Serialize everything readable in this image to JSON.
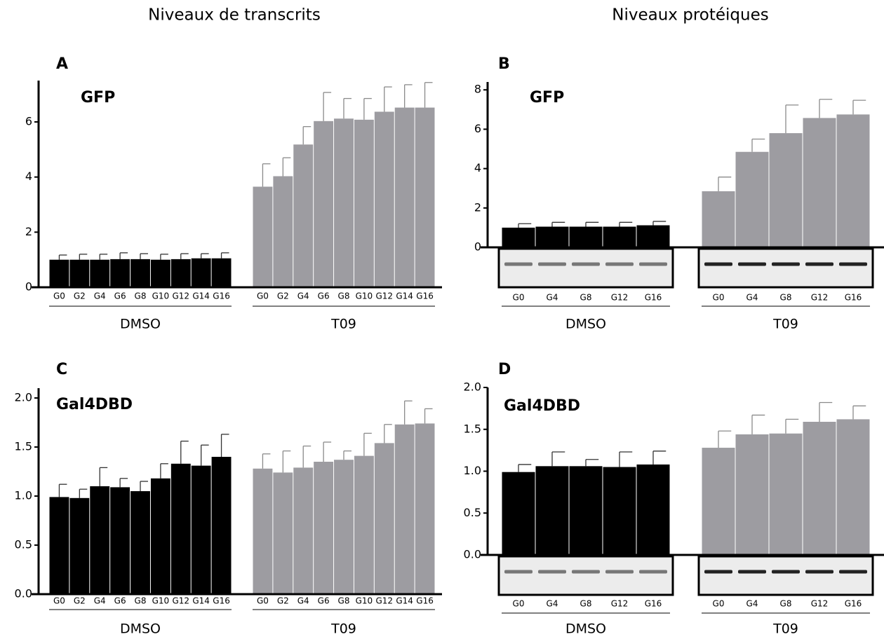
{
  "headings": [
    "Niveaux de transcrits",
    "Niveaux protéiques"
  ],
  "chart_data": [
    {
      "type": "bar",
      "panel": "A",
      "title": "GFP",
      "categories": [
        "G0",
        "G2",
        "G4",
        "G6",
        "G8",
        "G10",
        "G12",
        "G14",
        "G16"
      ],
      "ylim": [
        0,
        7.5
      ],
      "yticks": [
        0,
        2,
        4,
        6
      ],
      "series": [
        {
          "name": "DMSO",
          "color": "#000000",
          "values": [
            1.0,
            1.0,
            1.0,
            1.02,
            1.02,
            1.0,
            1.02,
            1.05,
            1.05
          ],
          "errors": [
            0.17,
            0.2,
            0.2,
            0.23,
            0.2,
            0.2,
            0.2,
            0.17,
            0.2
          ]
        },
        {
          "name": "T09",
          "color": "#9d9ca1",
          "values": [
            3.65,
            4.03,
            5.18,
            6.03,
            6.12,
            6.08,
            6.37,
            6.52,
            6.52
          ],
          "errors": [
            0.83,
            0.67,
            0.65,
            1.04,
            0.73,
            0.77,
            0.9,
            0.83,
            0.91
          ]
        }
      ]
    },
    {
      "type": "bar",
      "panel": "B",
      "title": "GFP",
      "categories": [
        "G0",
        "G4",
        "G8",
        "G12",
        "G16"
      ],
      "ylim": [
        0,
        8.4
      ],
      "yticks": [
        0,
        2,
        4,
        6,
        8
      ],
      "series": [
        {
          "name": "DMSO",
          "color": "#000000",
          "values": [
            1.0,
            1.05,
            1.05,
            1.05,
            1.12
          ],
          "errors": [
            0.2,
            0.22,
            0.22,
            0.22,
            0.2
          ]
        },
        {
          "name": "T09",
          "color": "#9d9ca1",
          "values": [
            2.85,
            4.85,
            5.8,
            6.57,
            6.75
          ],
          "errors": [
            0.72,
            0.65,
            1.43,
            0.95,
            0.72
          ]
        }
      ]
    },
    {
      "type": "bar",
      "panel": "C",
      "title": "Gal4DBD",
      "categories": [
        "G0",
        "G2",
        "G4",
        "G6",
        "G8",
        "G10",
        "G12",
        "G14",
        "G16"
      ],
      "ylim": [
        0,
        2.1
      ],
      "yticks": [
        {
          "value": 0,
          "label": "0.0"
        },
        {
          "value": 0.5,
          "label": "0.5"
        },
        {
          "value": 1,
          "label": "1.0"
        },
        {
          "value": 1.5,
          "label": "1.5"
        },
        {
          "value": 2,
          "label": "2.0"
        }
      ],
      "series": [
        {
          "name": "DMSO",
          "color": "#000000",
          "values": [
            0.99,
            0.98,
            1.1,
            1.09,
            1.05,
            1.18,
            1.33,
            1.31,
            1.4
          ],
          "errors": [
            0.13,
            0.09,
            0.19,
            0.09,
            0.1,
            0.15,
            0.23,
            0.21,
            0.23
          ]
        },
        {
          "name": "T09",
          "color": "#9d9ca1",
          "values": [
            1.28,
            1.24,
            1.29,
            1.35,
            1.37,
            1.41,
            1.54,
            1.73,
            1.74
          ],
          "errors": [
            0.15,
            0.22,
            0.22,
            0.2,
            0.09,
            0.23,
            0.19,
            0.24,
            0.15
          ]
        }
      ]
    },
    {
      "type": "bar",
      "panel": "D",
      "title": "Gal4DBD",
      "categories": [
        "G0",
        "G4",
        "G8",
        "G12",
        "G16"
      ],
      "ylim": [
        0,
        2
      ],
      "yticks": [
        {
          "value": 0,
          "label": "0.0"
        },
        {
          "value": 0.5,
          "label": "0.5"
        },
        {
          "value": 1,
          "label": "1.0"
        },
        {
          "value": 1.5,
          "label": "1.5"
        },
        {
          "value": 2,
          "label": "2.0"
        }
      ],
      "series": [
        {
          "name": "DMSO",
          "color": "#000000",
          "values": [
            0.99,
            1.06,
            1.06,
            1.05,
            1.08
          ],
          "errors": [
            0.09,
            0.17,
            0.08,
            0.18,
            0.16
          ]
        },
        {
          "name": "T09",
          "color": "#9d9ca1",
          "values": [
            1.28,
            1.44,
            1.45,
            1.59,
            1.62
          ],
          "errors": [
            0.2,
            0.23,
            0.17,
            0.23,
            0.16
          ]
        }
      ]
    }
  ]
}
